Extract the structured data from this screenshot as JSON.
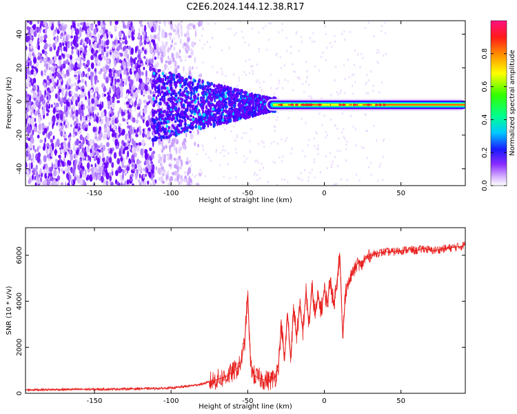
{
  "title": "C2E6.2024.144.12.38.R17",
  "colors": {
    "snr_line": "#e8201e",
    "background": "#ffffff",
    "axis": "#000000"
  },
  "chart_data": [
    {
      "type": "heatmap",
      "title": "C2E6.2024.144.12.38.R17",
      "xlabel": "Height of straight line (km)",
      "ylabel": "Frequency (Hz)",
      "xlim": [
        -195,
        92
      ],
      "ylim": [
        -50,
        48
      ],
      "xticks": [
        -150,
        -100,
        -50,
        0,
        50
      ],
      "yticks": [
        -40,
        -20,
        0,
        20,
        40
      ],
      "grid": false,
      "colorbar": {
        "label": "Normalized spectral amplitude",
        "range": [
          0,
          1
        ],
        "ticks": [
          0.0,
          0.2,
          0.4,
          0.6,
          0.8
        ],
        "colormap": "gist_rainbow",
        "position": "right"
      },
      "description_features": {
        "noise_region_x": [
          -195,
          -105
        ],
        "signal_line_center_hz": -2,
        "signal_onset_km": -35
      }
    },
    {
      "type": "line",
      "xlabel": "Height of straight line (km)",
      "ylabel": "SNR (10 * v/v)",
      "xlim": [
        -195,
        92
      ],
      "ylim": [
        0,
        7200
      ],
      "xticks": [
        -150,
        -100,
        -50,
        0,
        50
      ],
      "yticks": [
        0,
        2000,
        4000,
        6000
      ],
      "grid": false,
      "series": [
        {
          "color": "#e8201e",
          "x": [
            -195,
            -180,
            -160,
            -140,
            -120,
            -110,
            -100,
            -90,
            -80,
            -70,
            -65,
            -60,
            -55,
            -52,
            -50,
            -49,
            -48,
            -46,
            -44,
            -42,
            -40,
            -36,
            -32,
            -30,
            -28,
            -26,
            -24,
            -22,
            -20,
            -18,
            -16,
            -14,
            -12,
            -10,
            -8,
            -6,
            -4,
            -2,
            0,
            2,
            4,
            6,
            8,
            10,
            11,
            12,
            13,
            14,
            16,
            18,
            20,
            22,
            24,
            26,
            28,
            30,
            35,
            40,
            45,
            50,
            55,
            60,
            65,
            70,
            75,
            80,
            85,
            90,
            92
          ],
          "y": [
            150,
            160,
            170,
            180,
            200,
            210,
            230,
            300,
            400,
            600,
            700,
            900,
            1200,
            2200,
            4300,
            2600,
            1200,
            800,
            700,
            650,
            600,
            550,
            700,
            1200,
            3000,
            1400,
            3500,
            1500,
            3700,
            2500,
            3800,
            2700,
            4400,
            3000,
            4600,
            3400,
            4200,
            3600,
            4500,
            3900,
            5000,
            3800,
            4700,
            6100,
            4400,
            2400,
            3500,
            4600,
            4800,
            5200,
            5400,
            5700,
            5500,
            5800,
            5900,
            6000,
            6100,
            6150,
            6150,
            6200,
            6250,
            6200,
            6300,
            6200,
            6250,
            6300,
            6350,
            6400,
            6500
          ]
        }
      ]
    }
  ]
}
